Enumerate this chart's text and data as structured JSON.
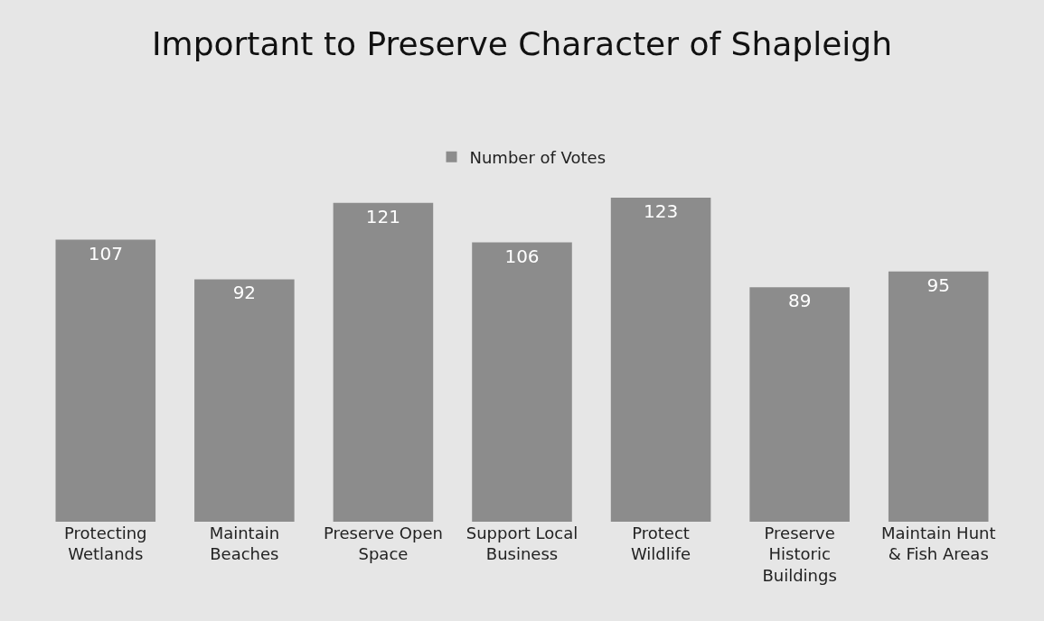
{
  "chart_data": {
    "type": "bar",
    "title": "Important to Preserve Character of Shapleigh",
    "categories": [
      "Protecting Wetlands",
      "Maintain Beaches",
      "Preserve Open Space",
      "Support Local Business",
      "Protect Wildlife",
      "Preserve Historic Buildings",
      "Maintain Hunt & Fish Areas"
    ],
    "series": [
      {
        "name": "Number of Votes",
        "color": "#8c8c8c",
        "values": [
          107,
          92,
          121,
          106,
          123,
          89,
          95
        ]
      }
    ],
    "data_labels": true,
    "legend": "top"
  }
}
